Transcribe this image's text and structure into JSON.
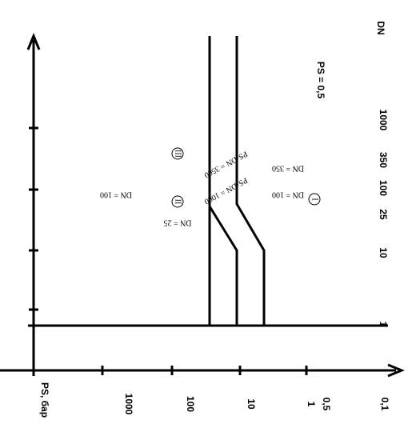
{
  "x_axis": {
    "title": "PS, бар",
    "labels": [
      "1000",
      "100",
      "10",
      "1",
      "0,5",
      "0,1"
    ]
  },
  "y_axis": {
    "title": "DN",
    "labels": [
      "1000",
      "350",
      "100",
      "25",
      "10",
      "1"
    ]
  },
  "boundary": "PS = 0,5",
  "curves": [
    "PS·DN = 3500",
    "PS·DN = 1000"
  ],
  "regions": [
    "I",
    "II",
    "III"
  ],
  "notes": [
    "DN = 100",
    "DN = 25",
    "DN = 350",
    "DN = 100"
  ]
}
